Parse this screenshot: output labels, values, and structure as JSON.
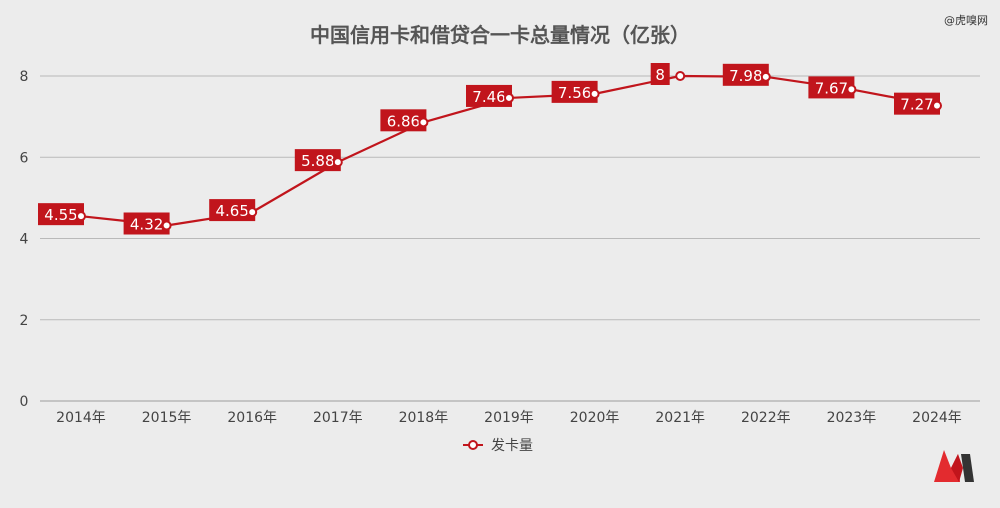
{
  "watermark": "@虎嗅网",
  "brand": {
    "logo_name": "stylized-m-logo",
    "colors": [
      "#e32b2f",
      "#c1151c",
      "#333333"
    ]
  },
  "chart_data": {
    "type": "line",
    "title": "中国信用卡和借贷合一卡总量情况（亿张）",
    "xlabel": "",
    "ylabel": "",
    "categories": [
      "2014年",
      "2015年",
      "2016年",
      "2017年",
      "2018年",
      "2019年",
      "2020年",
      "2021年",
      "2022年",
      "2023年",
      "2024年"
    ],
    "series": [
      {
        "name": "发卡量",
        "values": [
          4.55,
          4.32,
          4.65,
          5.88,
          6.86,
          7.46,
          7.56,
          8,
          7.98,
          7.67,
          7.27
        ],
        "labels": [
          "4.55",
          "4.32",
          "4.65",
          "5.88",
          "6.86",
          "7.46",
          "7.56",
          "8",
          "7.98",
          "7.67",
          "7.27"
        ],
        "color": "#c1151c"
      }
    ],
    "ylim": [
      0,
      8
    ],
    "yticks": [
      "0",
      "2",
      "4",
      "6",
      "8"
    ],
    "grid": true,
    "legend_position": "bottom-center",
    "colors": {
      "title": "#555555",
      "axis_text": "#444444",
      "grid": "#b9b9b9",
      "line": "#c1151c",
      "label_bg": "#c1151c",
      "label_text": "#ffffff",
      "marker_fill": "#ffffff"
    }
  }
}
